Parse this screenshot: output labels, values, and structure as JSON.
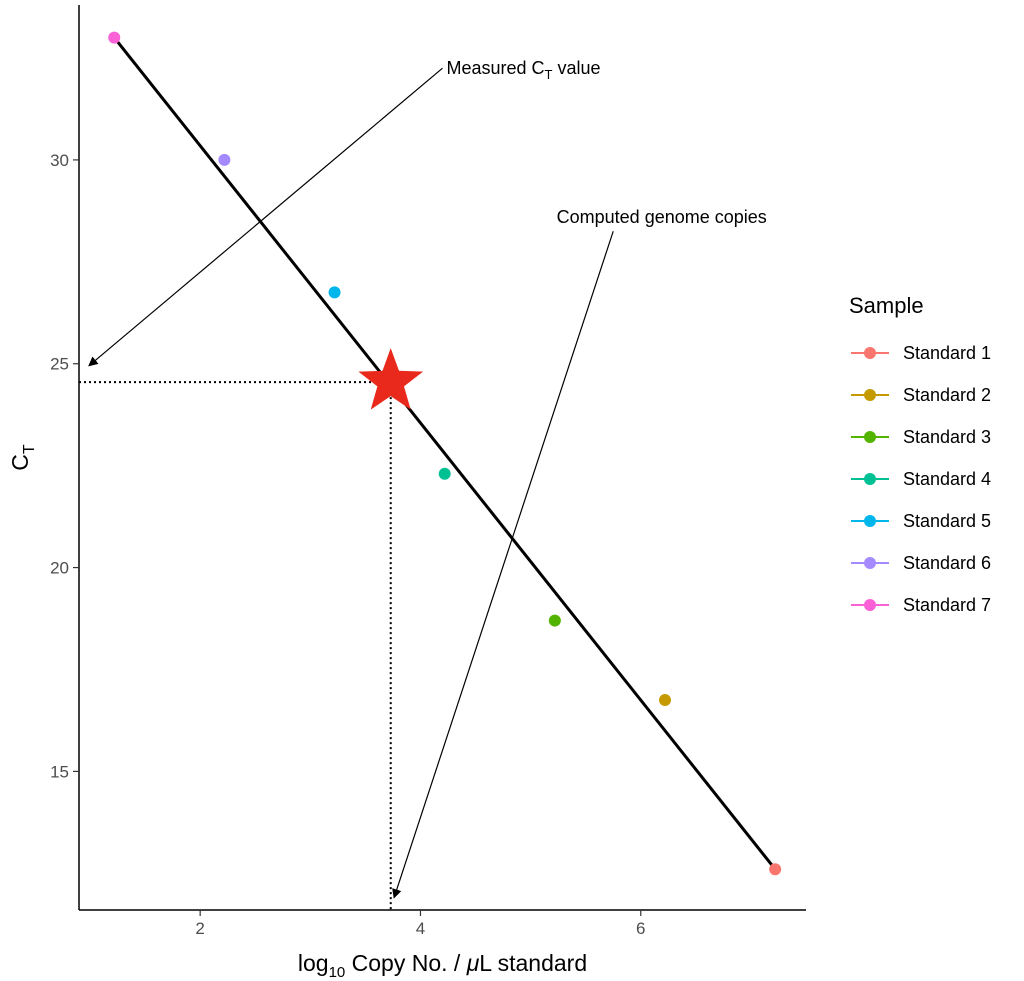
{
  "chart_data": {
    "type": "scatter",
    "xlabel": {
      "pre": "log",
      "sub": "10",
      "post": " Copy No. / ",
      "mu": "μ",
      "post2": "L standard"
    },
    "ylabel": {
      "main": "C",
      "sub": "T"
    },
    "xlim": [
      0.9,
      7.5
    ],
    "ylim": [
      11.6,
      33.8
    ],
    "x_ticks": [
      2,
      4,
      6
    ],
    "y_ticks": [
      15,
      20,
      25,
      30
    ],
    "grid": false,
    "legend": {
      "title": "Sample",
      "position": "right"
    },
    "series": [
      {
        "name": "Standard 1",
        "color": "#F8766D",
        "x": 7.22,
        "y": 12.6
      },
      {
        "name": "Standard 2",
        "color": "#C49A00",
        "x": 6.22,
        "y": 16.75
      },
      {
        "name": "Standard 3",
        "color": "#53B400",
        "x": 5.22,
        "y": 18.7
      },
      {
        "name": "Standard 4",
        "color": "#00C094",
        "x": 4.22,
        "y": 22.3
      },
      {
        "name": "Standard 5",
        "color": "#00B6EB",
        "x": 3.22,
        "y": 26.75
      },
      {
        "name": "Standard 6",
        "color": "#A58AFF",
        "x": 2.22,
        "y": 30.0
      },
      {
        "name": "Standard 7",
        "color": "#FB61D7",
        "x": 1.22,
        "y": 33.0
      }
    ],
    "fit_line": {
      "x": [
        1.22,
        7.22
      ],
      "y": [
        33.0,
        12.6
      ],
      "color": "#000000"
    },
    "star": {
      "x": 3.73,
      "y": 24.55,
      "color": "#E8291C"
    },
    "annotations": [
      {
        "id": "measured",
        "text_main": "Measured C",
        "text_sub": "T",
        "text_post": " value",
        "text_x": 4.2,
        "text_y": 32.25,
        "arrow_from": [
          4.2,
          32.25
        ],
        "arrow_to": [
          0.99,
          24.95
        ]
      },
      {
        "id": "computed",
        "text_main": "Computed genome copies",
        "text_x": 5.2,
        "text_y": 28.6,
        "arrow_from": [
          5.75,
          28.25
        ],
        "arrow_to": [
          3.76,
          11.9
        ]
      }
    ]
  }
}
